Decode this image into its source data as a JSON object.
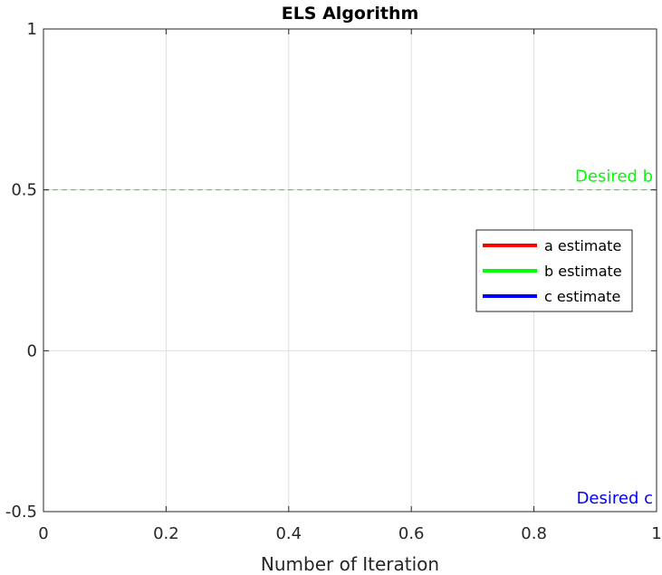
{
  "chart_data": {
    "type": "line",
    "title": "ELS Algorithm",
    "xlabel": "Number of Iteration",
    "ylabel": "",
    "xlim": [
      0,
      1
    ],
    "ylim": [
      -0.5,
      1
    ],
    "x_ticks": [
      0,
      0.2,
      0.4,
      0.6,
      0.8,
      1
    ],
    "x_tick_labels": [
      "0",
      "0.2",
      "0.4",
      "0.6",
      "0.8",
      "1"
    ],
    "y_ticks": [
      -0.5,
      0,
      0.5,
      1
    ],
    "y_tick_labels": [
      "-0.5",
      "0",
      "0.5",
      "1"
    ],
    "grid": true,
    "legend_position": "right",
    "series": [
      {
        "name": "a estimate",
        "color": "#ff0000",
        "x": [],
        "y": []
      },
      {
        "name": "b estimate",
        "color": "#00ff00",
        "x": [],
        "y": []
      },
      {
        "name": "c estimate",
        "color": "#0000ff",
        "x": [],
        "y": []
      }
    ],
    "reference_lines": [
      {
        "value": 1,
        "color": "#ff0000",
        "style": "dashed",
        "label": ""
      },
      {
        "value": 0.5,
        "color": "#00ff00",
        "style": "dashed",
        "label": "Desired b"
      },
      {
        "value": -0.5,
        "color": "#0000ff",
        "style": "dashed",
        "label": "Desired c"
      }
    ]
  }
}
